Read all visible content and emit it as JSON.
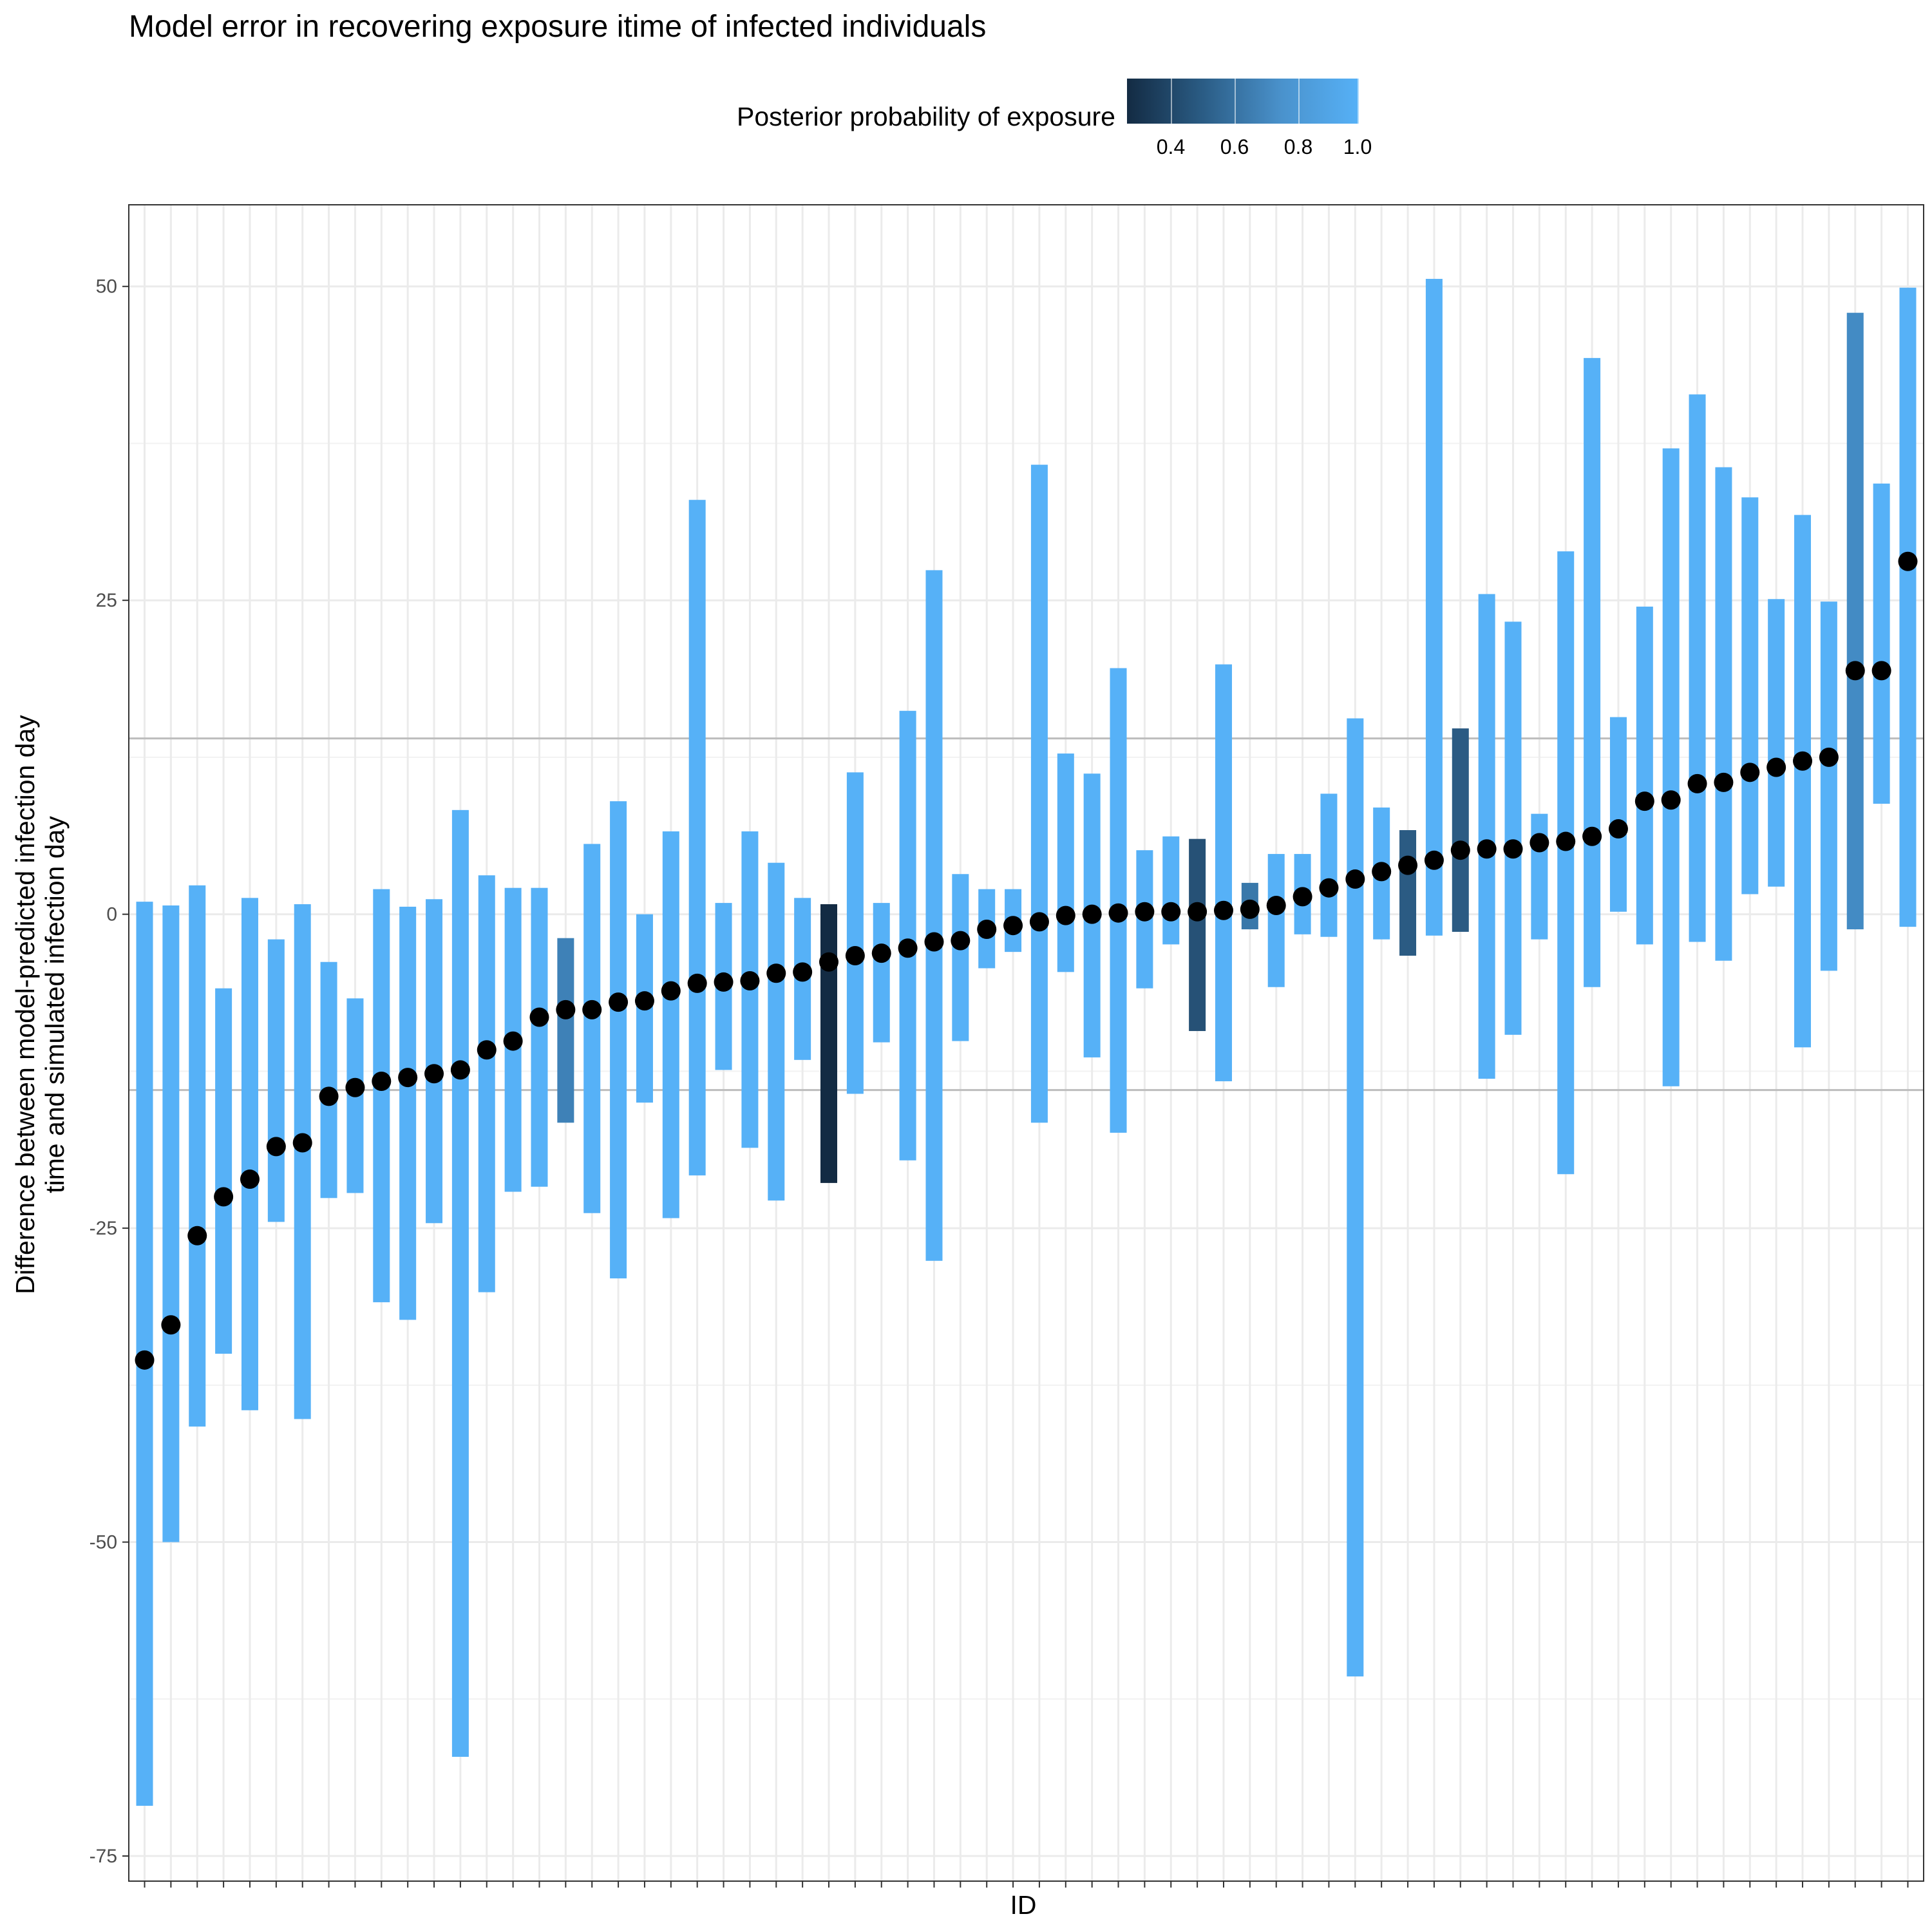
{
  "chart_data": {
    "type": "errorbar-dot",
    "title": "Model error in recovering exposure itime of infected individuals",
    "xlabel": "ID",
    "ylabel": [
      "Difference between model-predicted infection day",
      "time and simulated infection day"
    ],
    "ylim": [
      -77,
      56.5
    ],
    "yticks": [
      -75,
      -50,
      -25,
      0,
      25,
      50
    ],
    "ytick_labels": [
      "-75",
      "-50",
      "-25",
      "0",
      "25",
      "50"
    ],
    "reference_lines": [
      14,
      -14
    ],
    "legend": {
      "title": "Posterior probability of exposure",
      "ticks": [
        "0.4",
        "0.6",
        "0.8",
        "1.0"
      ],
      "tick_values": [
        0.4,
        0.6,
        0.8,
        1.0
      ],
      "range": [
        0.3,
        1.0
      ],
      "low_color": "#132B43",
      "high_color": "#56B1F7",
      "placement": "top"
    },
    "points": [
      {
        "y": -35.5,
        "lo": -71,
        "hi": 1,
        "p": 1.0
      },
      {
        "y": -32.7,
        "lo": -50,
        "hi": 0.7,
        "p": 1.0
      },
      {
        "y": -25.6,
        "lo": -40.8,
        "hi": 2.3,
        "p": 1.0
      },
      {
        "y": -22.5,
        "lo": -35,
        "hi": -5.9,
        "p": 1.0
      },
      {
        "y": -21.1,
        "lo": -39.5,
        "hi": 1.3,
        "p": 1.0
      },
      {
        "y": -18.5,
        "lo": -24.5,
        "hi": -2,
        "p": 1.0
      },
      {
        "y": -18.2,
        "lo": -40.2,
        "hi": 0.8,
        "p": 1.0
      },
      {
        "y": -14.5,
        "lo": -22.6,
        "hi": -3.8,
        "p": 1.0
      },
      {
        "y": -13.8,
        "lo": -22.2,
        "hi": -6.7,
        "p": 1.0
      },
      {
        "y": -13.3,
        "lo": -30.9,
        "hi": 2,
        "p": 1.0
      },
      {
        "y": -13,
        "lo": -32.3,
        "hi": 0.6,
        "p": 1.0
      },
      {
        "y": -12.7,
        "lo": -24.6,
        "hi": 1.2,
        "p": 1.0
      },
      {
        "y": -12.4,
        "lo": -67.1,
        "hi": 8.3,
        "p": 1.0
      },
      {
        "y": -10.8,
        "lo": -30.1,
        "hi": 3.1,
        "p": 1.0
      },
      {
        "y": -10.1,
        "lo": -22.1,
        "hi": 2.1,
        "p": 1.0
      },
      {
        "y": -8.2,
        "lo": -21.7,
        "hi": 2.1,
        "p": 1.0
      },
      {
        "y": -7.6,
        "lo": -16.6,
        "hi": -1.9,
        "p": 0.75
      },
      {
        "y": -7.6,
        "lo": -23.8,
        "hi": 5.6,
        "p": 1.0
      },
      {
        "y": -7,
        "lo": -29,
        "hi": 9,
        "p": 1.0
      },
      {
        "y": -6.9,
        "lo": -15,
        "hi": 0,
        "p": 1.0
      },
      {
        "y": -6.1,
        "lo": -24.2,
        "hi": 6.6,
        "p": 1.0
      },
      {
        "y": -5.5,
        "lo": -20.8,
        "hi": 33,
        "p": 1.0
      },
      {
        "y": -5.4,
        "lo": -12.4,
        "hi": 0.9,
        "p": 1.0
      },
      {
        "y": -5.3,
        "lo": -18.6,
        "hi": 6.6,
        "p": 1.0
      },
      {
        "y": -4.7,
        "lo": -22.8,
        "hi": 4.1,
        "p": 1.0
      },
      {
        "y": -4.6,
        "lo": -11.6,
        "hi": 1.3,
        "p": 1.0
      },
      {
        "y": -3.8,
        "lo": -21.4,
        "hi": 0.8,
        "p": 0.3
      },
      {
        "y": -3.3,
        "lo": -14.3,
        "hi": 11.3,
        "p": 1.0
      },
      {
        "y": -3.1,
        "lo": -10.2,
        "hi": 0.9,
        "p": 1.0
      },
      {
        "y": -2.7,
        "lo": -19.6,
        "hi": 16.2,
        "p": 1.0
      },
      {
        "y": -2.2,
        "lo": -27.6,
        "hi": 27.4,
        "p": 1.0
      },
      {
        "y": -2.1,
        "lo": -10.1,
        "hi": 3.2,
        "p": 1.0
      },
      {
        "y": -1.2,
        "lo": -4.3,
        "hi": 2,
        "p": 1.0
      },
      {
        "y": -0.9,
        "lo": -3,
        "hi": 2,
        "p": 1.0
      },
      {
        "y": -0.6,
        "lo": -16.6,
        "hi": 35.8,
        "p": 1.0
      },
      {
        "y": -0.1,
        "lo": -4.6,
        "hi": 12.8,
        "p": 1.0
      },
      {
        "y": 0,
        "lo": -11.4,
        "hi": 11.2,
        "p": 1.0
      },
      {
        "y": 0.1,
        "lo": -17.4,
        "hi": 19.6,
        "p": 1.0
      },
      {
        "y": 0.2,
        "lo": -5.9,
        "hi": 5.1,
        "p": 1.0
      },
      {
        "y": 0.2,
        "lo": -2.4,
        "hi": 6.2,
        "p": 1.0
      },
      {
        "y": 0.2,
        "lo": -9.3,
        "hi": 6,
        "p": 0.5
      },
      {
        "y": 0.3,
        "lo": -13.3,
        "hi": 19.9,
        "p": 1.0
      },
      {
        "y": 0.4,
        "lo": -1.2,
        "hi": 2.5,
        "p": 0.7
      },
      {
        "y": 0.7,
        "lo": -5.8,
        "hi": 4.8,
        "p": 1.0
      },
      {
        "y": 1.4,
        "lo": -1.6,
        "hi": 4.8,
        "p": 1.0
      },
      {
        "y": 2.1,
        "lo": -1.8,
        "hi": 9.6,
        "p": 1.0
      },
      {
        "y": 2.8,
        "lo": -60.7,
        "hi": 15.6,
        "p": 1.0
      },
      {
        "y": 3.4,
        "lo": -2,
        "hi": 8.5,
        "p": 1.0
      },
      {
        "y": 3.9,
        "lo": -3.3,
        "hi": 6.7,
        "p": 0.55
      },
      {
        "y": 4.3,
        "lo": -1.7,
        "hi": 50.6,
        "p": 1.0
      },
      {
        "y": 5.1,
        "lo": -1.4,
        "hi": 14.8,
        "p": 0.55
      },
      {
        "y": 5.2,
        "lo": -13.1,
        "hi": 25.5,
        "p": 1.0
      },
      {
        "y": 5.2,
        "lo": -9.6,
        "hi": 23.3,
        "p": 1.0
      },
      {
        "y": 5.7,
        "lo": -2,
        "hi": 8,
        "p": 1.0
      },
      {
        "y": 5.8,
        "lo": -20.7,
        "hi": 28.9,
        "p": 1.0
      },
      {
        "y": 6.2,
        "lo": -5.8,
        "hi": 44.3,
        "p": 1.0
      },
      {
        "y": 6.8,
        "lo": 0.2,
        "hi": 15.7,
        "p": 1.0
      },
      {
        "y": 9,
        "lo": -2.4,
        "hi": 24.5,
        "p": 1.0
      },
      {
        "y": 9.1,
        "lo": -13.7,
        "hi": 37.1,
        "p": 1.0
      },
      {
        "y": 10.4,
        "lo": -2.2,
        "hi": 41.4,
        "p": 1.0
      },
      {
        "y": 10.5,
        "lo": -3.7,
        "hi": 35.6,
        "p": 1.0
      },
      {
        "y": 11.3,
        "lo": 1.6,
        "hi": 33.2,
        "p": 1.0
      },
      {
        "y": 11.7,
        "lo": 2.2,
        "hi": 25.1,
        "p": 1.0
      },
      {
        "y": 12.2,
        "lo": -10.6,
        "hi": 31.8,
        "p": 1.0
      },
      {
        "y": 12.5,
        "lo": -4.5,
        "hi": 24.9,
        "p": 1.0
      },
      {
        "y": 19.4,
        "lo": -1.2,
        "hi": 47.9,
        "p": 0.8
      },
      {
        "y": 19.4,
        "lo": 8.8,
        "hi": 34.3,
        "p": 1.0
      },
      {
        "y": 28.1,
        "lo": -1,
        "hi": 49.9,
        "p": 1.0
      }
    ]
  }
}
